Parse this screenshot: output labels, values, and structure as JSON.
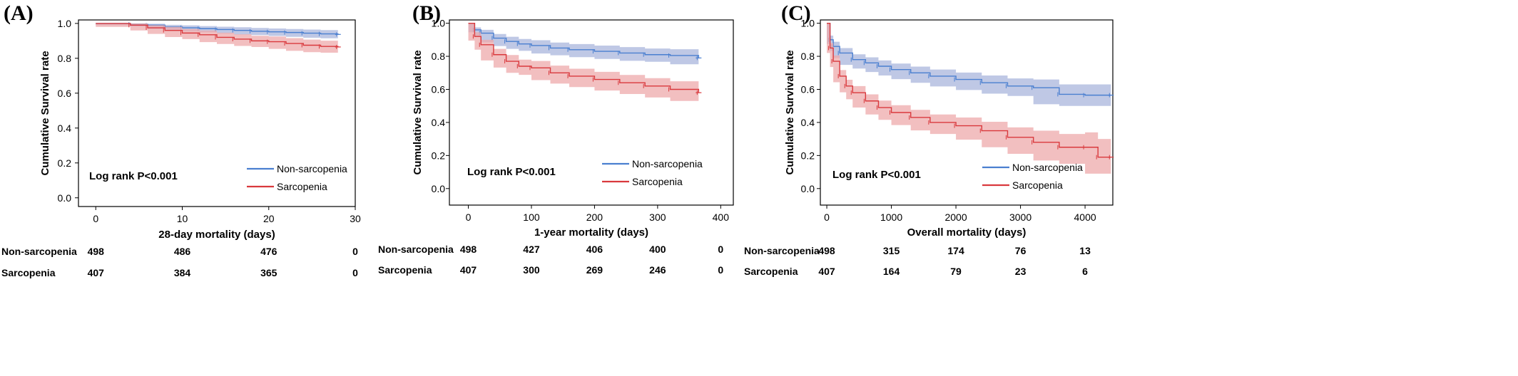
{
  "chart_data": [
    {
      "type": "line",
      "panel_label": "(A)",
      "title": "",
      "xlabel": "28-day mortality (days)",
      "ylabel": "Cumulative Survival rate",
      "xlim": [
        -2,
        30
      ],
      "ylim": [
        -0.05,
        1.02
      ],
      "xticks": [
        "0",
        "10",
        "20",
        "30"
      ],
      "xtick_values": [
        0,
        10,
        20,
        30
      ],
      "yticks": [
        "0.0",
        "0.2",
        "0.4",
        "0.6",
        "0.8",
        "1.0"
      ],
      "ytick_values": [
        0.0,
        0.2,
        0.4,
        0.6,
        0.8,
        1.0
      ],
      "annotation": "Log rank P<0.001",
      "legend_position": "bottom-right",
      "series": [
        {
          "name": "Non-sarcopenia",
          "color": "#4a7fd0",
          "band_color": "#aab6dc",
          "x": [
            0,
            4,
            6,
            8,
            10,
            12,
            14,
            16,
            18,
            20,
            22,
            24,
            26,
            28
          ],
          "y": [
            1.0,
            0.995,
            0.99,
            0.98,
            0.975,
            0.97,
            0.965,
            0.96,
            0.955,
            0.952,
            0.948,
            0.944,
            0.94,
            0.937
          ],
          "lower": [
            1.0,
            0.99,
            0.982,
            0.968,
            0.961,
            0.955,
            0.949,
            0.942,
            0.936,
            0.933,
            0.928,
            0.923,
            0.918,
            0.915
          ],
          "upper": [
            1.0,
            1.0,
            0.998,
            0.992,
            0.989,
            0.985,
            0.981,
            0.978,
            0.974,
            0.971,
            0.968,
            0.965,
            0.962,
            0.959
          ]
        },
        {
          "name": "Sarcopenia",
          "color": "#d9393d",
          "band_color": "#eea9ab",
          "x": [
            0,
            4,
            6,
            8,
            10,
            12,
            14,
            16,
            18,
            20,
            22,
            24,
            26,
            28
          ],
          "y": [
            1.0,
            0.99,
            0.975,
            0.96,
            0.945,
            0.935,
            0.92,
            0.91,
            0.9,
            0.895,
            0.885,
            0.875,
            0.868,
            0.865
          ],
          "lower": [
            1.0,
            0.98,
            0.96,
            0.94,
            0.922,
            0.91,
            0.893,
            0.882,
            0.871,
            0.865,
            0.854,
            0.843,
            0.835,
            0.832
          ],
          "upper": [
            1.0,
            1.0,
            0.99,
            0.98,
            0.968,
            0.96,
            0.947,
            0.938,
            0.929,
            0.925,
            0.916,
            0.907,
            0.901,
            0.898
          ]
        }
      ],
      "risk_table": {
        "rows": [
          {
            "label": "Non-sarcopenia",
            "values": [
              "498",
              "486",
              "476",
              "0"
            ]
          },
          {
            "label": "Sarcopenia",
            "values": [
              "407",
              "384",
              "365",
              "0"
            ]
          }
        ]
      }
    },
    {
      "type": "line",
      "panel_label": "(B)",
      "title": "",
      "xlabel": "1-year mortality (days)",
      "ylabel": "Cumulative Survival rate",
      "xlim": [
        -30,
        420
      ],
      "ylim": [
        -0.1,
        1.02
      ],
      "xticks": [
        "0",
        "100",
        "200",
        "300",
        "400"
      ],
      "xtick_values": [
        0,
        100,
        200,
        300,
        400
      ],
      "yticks": [
        "0.0",
        "0.2",
        "0.4",
        "0.6",
        "0.8",
        "1.0"
      ],
      "ytick_values": [
        0.0,
        0.2,
        0.4,
        0.6,
        0.8,
        1.0
      ],
      "annotation": "Log rank P<0.001",
      "legend_position": "bottom-right",
      "series": [
        {
          "name": "Non-sarcopenia",
          "color": "#4a7fd0",
          "band_color": "#aab6dc",
          "x": [
            0,
            10,
            20,
            40,
            60,
            80,
            100,
            130,
            160,
            200,
            240,
            280,
            320,
            365
          ],
          "y": [
            1.0,
            0.96,
            0.94,
            0.91,
            0.89,
            0.875,
            0.865,
            0.85,
            0.84,
            0.83,
            0.82,
            0.81,
            0.805,
            0.79
          ],
          "lower": [
            1.0,
            0.945,
            0.92,
            0.885,
            0.862,
            0.845,
            0.833,
            0.817,
            0.806,
            0.795,
            0.784,
            0.773,
            0.767,
            0.752
          ],
          "upper": [
            1.0,
            0.975,
            0.96,
            0.935,
            0.918,
            0.905,
            0.897,
            0.883,
            0.874,
            0.865,
            0.856,
            0.847,
            0.843,
            0.828
          ]
        },
        {
          "name": "Sarcopenia",
          "color": "#d9393d",
          "band_color": "#eea9ab",
          "x": [
            0,
            10,
            20,
            40,
            60,
            80,
            100,
            130,
            160,
            200,
            240,
            280,
            320,
            365
          ],
          "y": [
            1.0,
            0.92,
            0.87,
            0.81,
            0.77,
            0.74,
            0.73,
            0.7,
            0.68,
            0.66,
            0.64,
            0.62,
            0.6,
            0.58
          ],
          "lower": [
            1.0,
            0.895,
            0.84,
            0.775,
            0.732,
            0.7,
            0.688,
            0.656,
            0.635,
            0.614,
            0.593,
            0.572,
            0.551,
            0.53
          ],
          "upper": [
            1.0,
            0.945,
            0.9,
            0.845,
            0.808,
            0.78,
            0.772,
            0.744,
            0.725,
            0.706,
            0.687,
            0.668,
            0.649,
            0.63
          ]
        }
      ],
      "risk_table": {
        "rows": [
          {
            "label": "Non-sarcopenia",
            "values": [
              "498",
              "427",
              "406",
              "400",
              "0"
            ]
          },
          {
            "label": "Sarcopenia",
            "values": [
              "407",
              "300",
              "269",
              "246",
              "0"
            ]
          }
        ]
      }
    },
    {
      "type": "line",
      "panel_label": "(C)",
      "title": "",
      "xlabel": "Overall mortality (days)",
      "ylabel": "Cumulative Survival rate",
      "xlim": [
        -100,
        4430
      ],
      "ylim": [
        -0.1,
        1.02
      ],
      "xticks": [
        "0",
        "1000",
        "2000",
        "3000",
        "4000"
      ],
      "xtick_values": [
        0,
        1000,
        2000,
        3000,
        4000
      ],
      "yticks": [
        "0.0",
        "0.2",
        "0.4",
        "0.6",
        "0.8",
        "1.0"
      ],
      "ytick_values": [
        0.0,
        0.2,
        0.4,
        0.6,
        0.8,
        1.0
      ],
      "annotation": "Log rank P<0.001",
      "legend_position": "bottom-right",
      "series": [
        {
          "name": "Non-sarcopenia",
          "color": "#4a7fd0",
          "band_color": "#aab6dc",
          "x": [
            0,
            50,
            100,
            200,
            400,
            600,
            800,
            1000,
            1300,
            1600,
            2000,
            2400,
            2800,
            3200,
            3600,
            4000,
            4400
          ],
          "y": [
            1.0,
            0.9,
            0.86,
            0.82,
            0.78,
            0.76,
            0.74,
            0.72,
            0.7,
            0.68,
            0.66,
            0.64,
            0.62,
            0.61,
            0.57,
            0.565,
            0.565
          ],
          "lower": [
            1.0,
            0.875,
            0.832,
            0.79,
            0.748,
            0.726,
            0.705,
            0.684,
            0.662,
            0.64,
            0.618,
            0.596,
            0.574,
            0.56,
            0.51,
            0.5,
            0.5
          ],
          "upper": [
            1.0,
            0.925,
            0.888,
            0.85,
            0.812,
            0.794,
            0.775,
            0.756,
            0.738,
            0.72,
            0.702,
            0.684,
            0.666,
            0.66,
            0.63,
            0.63,
            0.63
          ]
        },
        {
          "name": "Sarcopenia",
          "color": "#d9393d",
          "band_color": "#eea9ab",
          "x": [
            0,
            50,
            100,
            200,
            300,
            400,
            600,
            800,
            1000,
            1300,
            1600,
            2000,
            2400,
            2800,
            3200,
            3600,
            4000,
            4200,
            4400
          ],
          "y": [
            1.0,
            0.85,
            0.77,
            0.68,
            0.62,
            0.58,
            0.53,
            0.49,
            0.46,
            0.43,
            0.4,
            0.38,
            0.35,
            0.31,
            0.28,
            0.25,
            0.25,
            0.19,
            0.19
          ],
          "lower": [
            1.0,
            0.82,
            0.735,
            0.643,
            0.582,
            0.54,
            0.49,
            0.448,
            0.416,
            0.384,
            0.352,
            0.33,
            0.296,
            0.25,
            0.21,
            0.17,
            0.15,
            0.09,
            0.09
          ],
          "upper": [
            1.0,
            0.88,
            0.805,
            0.717,
            0.658,
            0.62,
            0.57,
            0.532,
            0.504,
            0.476,
            0.448,
            0.43,
            0.404,
            0.37,
            0.35,
            0.33,
            0.34,
            0.3,
            0.3
          ]
        }
      ],
      "risk_table": {
        "rows": [
          {
            "label": "Non-sarcopenia",
            "values": [
              "498",
              "315",
              "174",
              "76",
              "13"
            ]
          },
          {
            "label": "Sarcopenia",
            "values": [
              "407",
              "164",
              "79",
              "23",
              "6"
            ]
          }
        ]
      }
    }
  ]
}
